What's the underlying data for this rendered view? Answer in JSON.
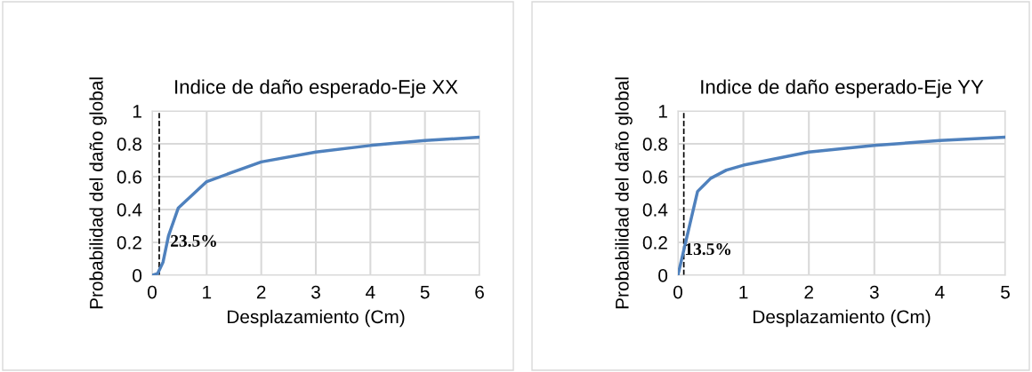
{
  "chart_data": [
    {
      "type": "line",
      "title": "Indice de daño esperado-Eje XX",
      "xlabel": "Desplazamiento (Cm)",
      "ylabel": "Probabilidad del daño global",
      "x": [
        0,
        0.1,
        0.2,
        0.3,
        0.48,
        1,
        2,
        3,
        4,
        5,
        6
      ],
      "series": [
        {
          "color": "#4f81bd",
          "values": [
            0,
            0.01,
            0.08,
            0.24,
            0.41,
            0.57,
            0.69,
            0.75,
            0.79,
            0.82,
            0.84
          ]
        }
      ],
      "xlim": [
        0,
        6
      ],
      "xticks": [
        0,
        1,
        2,
        3,
        4,
        5,
        6
      ],
      "ylim": [
        0,
        1
      ],
      "yticks": [
        0,
        0.2,
        0.4,
        0.6,
        0.8,
        1
      ],
      "grid": true,
      "ref_lines": [
        {
          "axis": "x",
          "value": 0.13,
          "color": "#000000",
          "line_style": "dashed"
        }
      ],
      "annotations": [
        {
          "text": "23.5%",
          "x": 0.33,
          "y": 0.2
        }
      ]
    },
    {
      "type": "line",
      "title": "Indice de daño esperado-Eje YY",
      "xlabel": "Desplazamiento (Cm)",
      "ylabel": "Probabilidad del daño global",
      "x": [
        0,
        0.3,
        0.4,
        0.5,
        0.74,
        1,
        2,
        3,
        4,
        5
      ],
      "series": [
        {
          "color": "#4f81bd",
          "values": [
            0,
            0.51,
            0.55,
            0.59,
            0.64,
            0.67,
            0.75,
            0.79,
            0.82,
            0.84
          ]
        }
      ],
      "xlim": [
        0,
        5
      ],
      "xticks": [
        0,
        1,
        2,
        3,
        4,
        5
      ],
      "ylim": [
        0,
        1
      ],
      "yticks": [
        0,
        0.2,
        0.4,
        0.6,
        0.8,
        1
      ],
      "grid": true,
      "ref_lines": [
        {
          "axis": "x",
          "value": 0.09,
          "color": "#000000",
          "line_style": "dashed"
        }
      ],
      "annotations": [
        {
          "text": "13.5%",
          "x": 0.1,
          "y": 0.15
        }
      ]
    }
  ]
}
